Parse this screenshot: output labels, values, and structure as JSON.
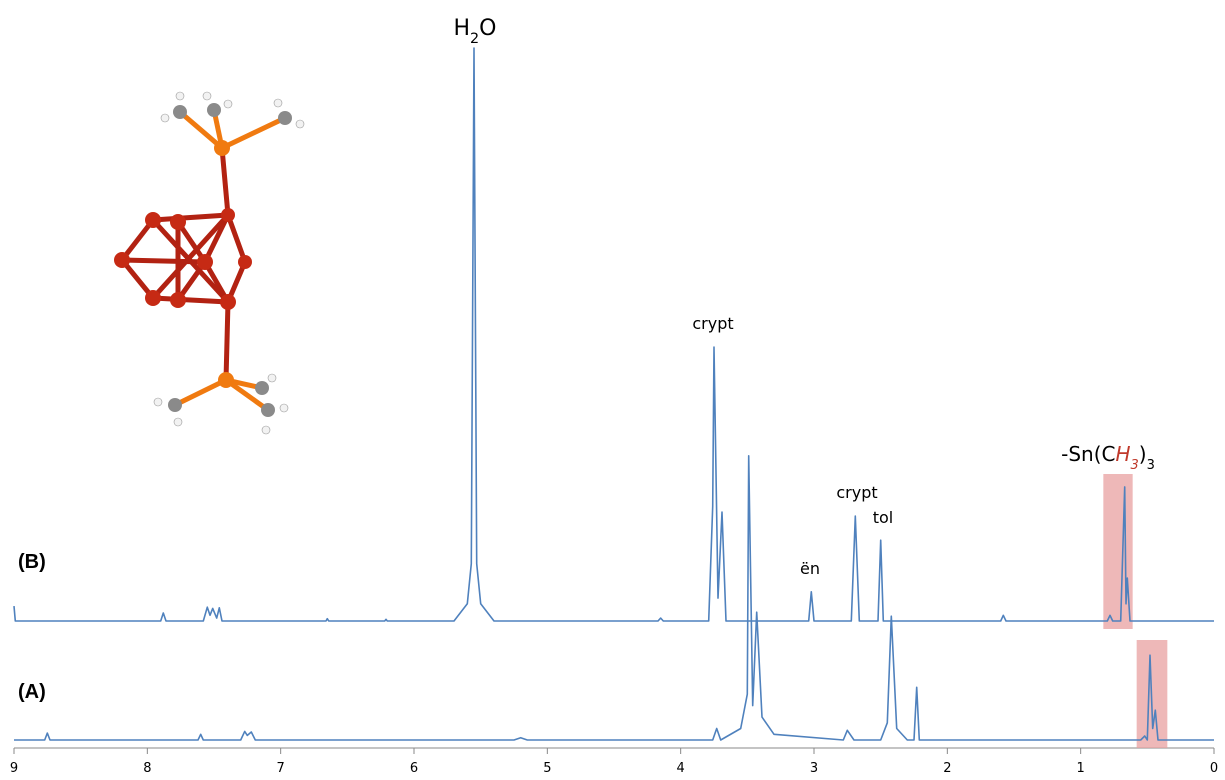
{
  "chart_data": {
    "type": "line",
    "xlim": [
      9,
      0
    ],
    "xticks": [
      9,
      8,
      7,
      6,
      5,
      4,
      3,
      2,
      1,
      0
    ],
    "series": [
      {
        "name": "(B)",
        "color": "#4f81bd",
        "x": [
          9.0,
          8.99,
          7.9,
          7.88,
          7.86,
          7.58,
          7.55,
          7.53,
          7.51,
          7.48,
          7.46,
          7.44,
          6.66,
          6.65,
          6.64,
          6.22,
          6.21,
          6.2,
          5.7,
          5.6,
          5.57,
          5.55,
          5.53,
          5.5,
          5.4,
          4.17,
          4.15,
          4.13,
          3.79,
          3.76,
          3.75,
          3.72,
          3.69,
          3.66,
          3.04,
          3.02,
          3.0,
          2.72,
          2.69,
          2.66,
          2.52,
          2.5,
          2.48,
          1.6,
          1.58,
          1.56,
          0.8,
          0.78,
          0.76,
          0.7,
          0.67,
          0.66,
          0.65,
          0.63,
          0.0
        ],
        "values": [
          2.6,
          0,
          0,
          1.4,
          0,
          0,
          2.4,
          1,
          2.2,
          0.5,
          2.3,
          0,
          0,
          0.4,
          0,
          0,
          0.3,
          0,
          0,
          3,
          10,
          100,
          10,
          3,
          0,
          0,
          0.5,
          0,
          0,
          20,
          47.8,
          4,
          19,
          0,
          0,
          5.1,
          0,
          0,
          18.3,
          0,
          0,
          14.1,
          0,
          0,
          1,
          0,
          0,
          1,
          0,
          0,
          23.4,
          3,
          7.5,
          0,
          0
        ]
      },
      {
        "name": "(A)",
        "color": "#4f81bd",
        "x": [
          9.0,
          8.77,
          8.75,
          8.73,
          7.62,
          7.6,
          7.58,
          7.3,
          7.27,
          7.25,
          7.22,
          7.19,
          5.25,
          5.2,
          5.15,
          3.76,
          3.73,
          3.7,
          3.55,
          3.5,
          3.49,
          3.46,
          3.43,
          3.39,
          3.3,
          2.78,
          2.75,
          2.7,
          2.5,
          2.45,
          2.42,
          2.38,
          2.3,
          2.25,
          2.23,
          2.21,
          0.55,
          0.52,
          0.5,
          0.48,
          0.46,
          0.44,
          0.42,
          0.0
        ],
        "values": [
          0,
          0,
          1.2,
          0,
          0,
          1,
          0,
          0,
          1.5,
          0.8,
          1.4,
          0,
          0,
          0.4,
          0,
          0,
          2,
          0,
          2,
          8,
          49.6,
          6,
          22.3,
          4,
          1,
          0,
          1.7,
          0,
          0,
          3,
          21.6,
          2,
          0,
          0,
          9.2,
          0,
          0,
          0.7,
          0,
          14.8,
          2,
          5.2,
          0,
          0
        ]
      }
    ],
    "highlights": [
      {
        "series": 0,
        "xrange": [
          0.83,
          0.61
        ],
        "color": "#e8a0a0"
      },
      {
        "series": 1,
        "xrange": [
          0.58,
          0.35
        ],
        "color": "#e8a0a0"
      }
    ],
    "annotations": [
      {
        "parts": [
          {
            "text": "H"
          },
          {
            "text": "2",
            "sub": true
          },
          {
            "text": "O"
          }
        ]
      },
      {
        "parts": [
          {
            "text": "crypt"
          }
        ]
      },
      {
        "parts": [
          {
            "text": "ën"
          }
        ]
      },
      {
        "parts": [
          {
            "text": "crypt"
          }
        ]
      },
      {
        "parts": [
          {
            "text": "tol"
          }
        ]
      },
      {
        "parts": [
          {
            "text": "-Sn(C"
          },
          {
            "text": "H",
            "italic": true,
            "color": "#c0392b"
          },
          {
            "text": "3",
            "sub": true,
            "italic": true,
            "color": "#c0392b"
          },
          {
            "text": ")"
          },
          {
            "text": "3",
            "sub": true
          }
        ]
      }
    ]
  }
}
